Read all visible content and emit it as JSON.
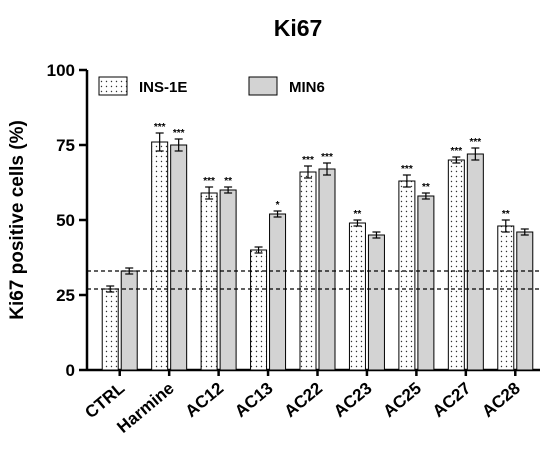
{
  "chart_data": {
    "type": "bar",
    "title": "Ki67",
    "xlabel": "",
    "ylabel": "Ki67 positive cells (%)",
    "ylim": [
      0,
      100
    ],
    "yticks": [
      "0",
      "25",
      "50",
      "75",
      "100"
    ],
    "categories": [
      "CTRL",
      "Harmine",
      "AC12",
      "AC13",
      "AC22",
      "AC23",
      "AC25",
      "AC27",
      "AC28"
    ],
    "series": [
      {
        "name": "INS-1E",
        "pattern": "dotted",
        "color": "#ffffff",
        "values": [
          27,
          76,
          59,
          40,
          66,
          49,
          63,
          70,
          48
        ],
        "errors": [
          1,
          3,
          2,
          1,
          2,
          1,
          2,
          1,
          2
        ],
        "significance": [
          "",
          "***",
          "***",
          "",
          "***",
          "**",
          "***",
          "***",
          "**"
        ]
      },
      {
        "name": "MIN6",
        "pattern": "solid",
        "color": "#d3d3d3",
        "values": [
          33,
          75,
          60,
          52,
          67,
          45,
          58,
          72,
          46
        ],
        "errors": [
          1,
          2,
          1,
          1,
          2,
          1,
          1,
          2,
          1
        ],
        "significance": [
          "",
          "***",
          "**",
          "*",
          "***",
          "",
          "**",
          "***",
          ""
        ]
      }
    ],
    "reference_lines": [
      27,
      33
    ],
    "legend_position": "top-left"
  }
}
